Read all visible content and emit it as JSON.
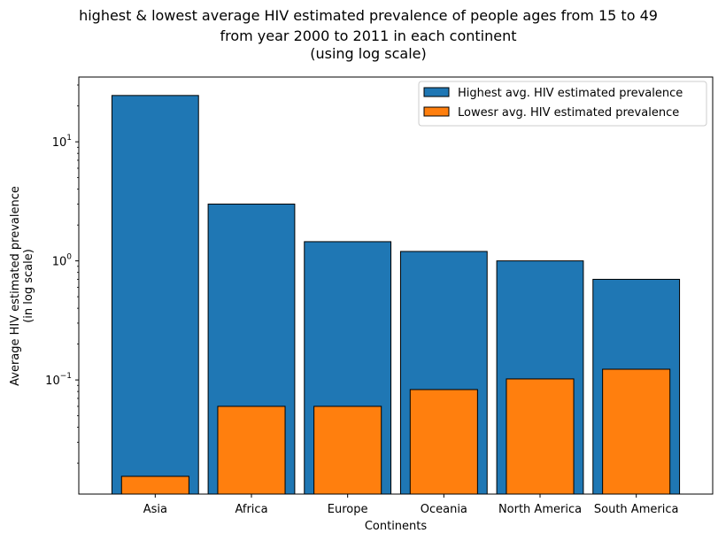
{
  "chart_data": {
    "type": "bar",
    "title_lines": [
      "highest & lowest average HIV estimated prevalence of people ages from 15 to 49",
      "from year 2000 to 2011 in each continent",
      "(using log scale)"
    ],
    "xlabel": "Continents",
    "ylabel_lines": [
      "Average HIV estimated prevalence",
      "(in log scale)"
    ],
    "yscale": "log",
    "ylim": [
      0.011,
      35
    ],
    "ytick_labels": [
      {
        "base": "10",
        "exp": "−1",
        "value": 0.1
      },
      {
        "base": "10",
        "exp": "0",
        "value": 1
      },
      {
        "base": "10",
        "exp": "1",
        "value": 10
      }
    ],
    "categories": [
      "Asia",
      "Africa",
      "Europe",
      "Oceania",
      "North America",
      "South America"
    ],
    "series": [
      {
        "name": "Highest avg. HIV estimated prevalence",
        "color": "#1f77b4",
        "values": [
          24.5,
          3.0,
          1.45,
          1.2,
          1.0,
          0.7
        ]
      },
      {
        "name": "Lowesr avg. HIV estimated prevalence",
        "color": "#ff7f0e",
        "values": [
          0.0155,
          0.06,
          0.06,
          0.083,
          0.102,
          0.123
        ]
      }
    ],
    "legend_position": "top-right",
    "grid": false
  }
}
